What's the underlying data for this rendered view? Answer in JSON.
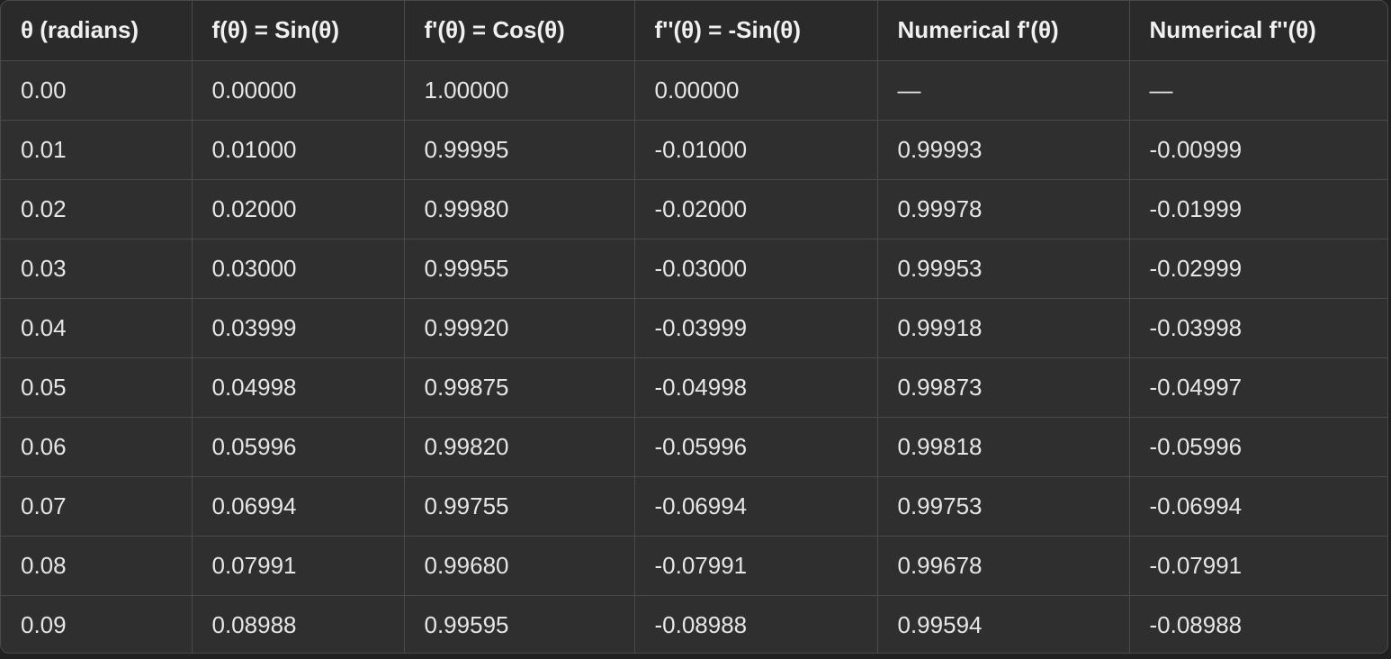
{
  "table": {
    "headers": [
      "θ (radians)",
      "f(θ) = Sin(θ)",
      "f'(θ) = Cos(θ)",
      "f''(θ) = -Sin(θ)",
      "Numerical f'(θ)",
      "Numerical f''(θ)"
    ],
    "rows": [
      [
        "0.00",
        "0.00000",
        "1.00000",
        "0.00000",
        "—",
        "—"
      ],
      [
        "0.01",
        "0.01000",
        "0.99995",
        "-0.01000",
        "0.99993",
        "-0.00999"
      ],
      [
        "0.02",
        "0.02000",
        "0.99980",
        "-0.02000",
        "0.99978",
        "-0.01999"
      ],
      [
        "0.03",
        "0.03000",
        "0.99955",
        "-0.03000",
        "0.99953",
        "-0.02999"
      ],
      [
        "0.04",
        "0.03999",
        "0.99920",
        "-0.03999",
        "0.99918",
        "-0.03998"
      ],
      [
        "0.05",
        "0.04998",
        "0.99875",
        "-0.04998",
        "0.99873",
        "-0.04997"
      ],
      [
        "0.06",
        "0.05996",
        "0.99820",
        "-0.05996",
        "0.99818",
        "-0.05996"
      ],
      [
        "0.07",
        "0.06994",
        "0.99755",
        "-0.06994",
        "0.99753",
        "-0.06994"
      ],
      [
        "0.08",
        "0.07991",
        "0.99680",
        "-0.07991",
        "0.99678",
        "-0.07991"
      ],
      [
        "0.09",
        "0.08988",
        "0.99595",
        "-0.08988",
        "0.99594",
        "-0.08988"
      ]
    ]
  },
  "colors": {
    "background": "#212121",
    "header_bg": "#2a2a2a",
    "cell_bg": "#2f2f2f",
    "border": "#4a4a4a",
    "text": "#ececec"
  }
}
